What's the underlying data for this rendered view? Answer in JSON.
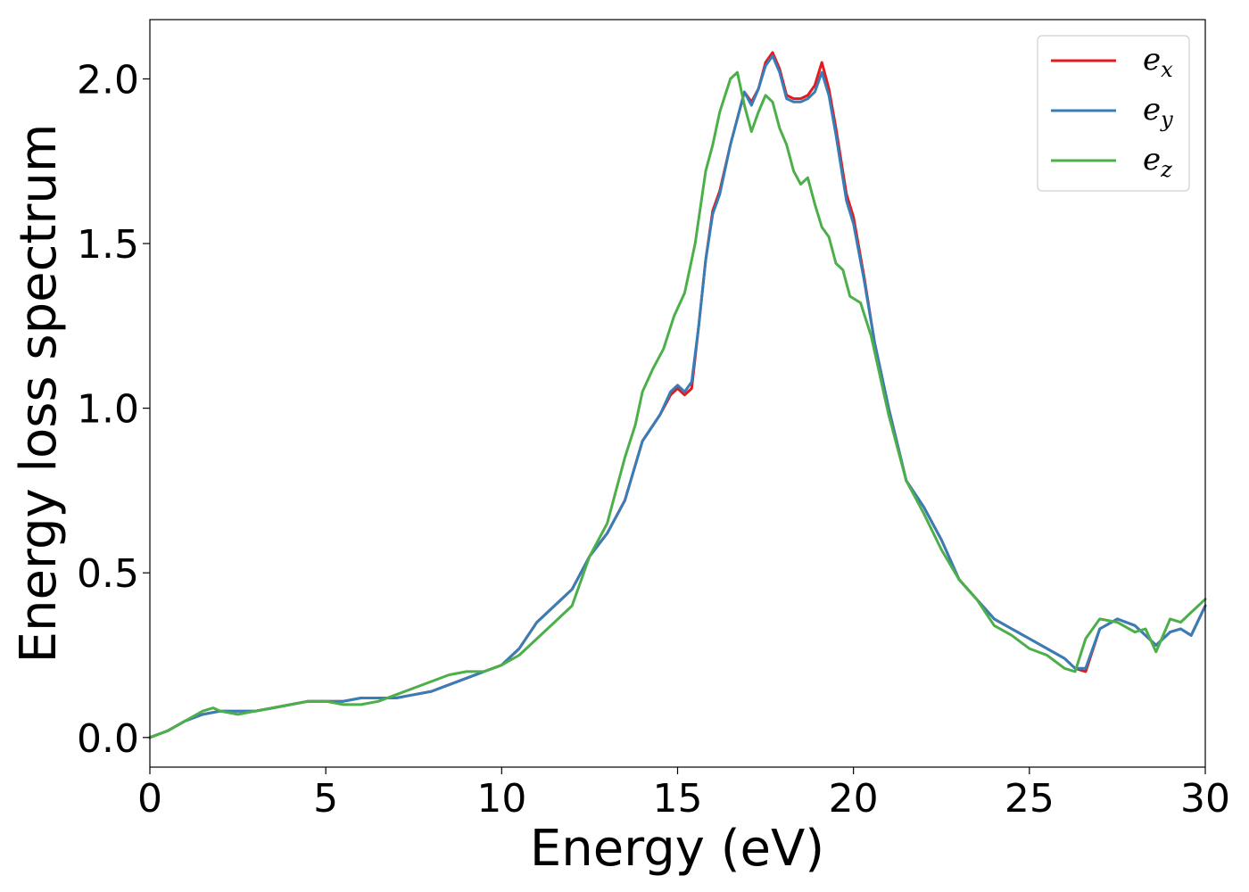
{
  "chart_data": {
    "type": "line",
    "xlabel": "Energy (eV)",
    "ylabel": "Energy loss spectrum",
    "xlim": [
      0,
      30
    ],
    "ylim": [
      -0.09,
      2.18
    ],
    "xticks": [
      0,
      5,
      10,
      15,
      20,
      25,
      30
    ],
    "xtick_labels": [
      "0",
      "5",
      "10",
      "15",
      "20",
      "25",
      "30"
    ],
    "yticks": [
      0.0,
      0.5,
      1.0,
      1.5,
      2.0
    ],
    "ytick_labels": [
      "0.0",
      "0.5",
      "1.0",
      "1.5",
      "2.0"
    ],
    "grid": false,
    "legend_position": "top-right",
    "series": [
      {
        "name": "e_x",
        "label_main": "e",
        "label_sub": "x",
        "color": "#e41a1c",
        "x": [
          0,
          0.5,
          1,
          1.5,
          2,
          2.5,
          3,
          3.5,
          4,
          4.5,
          5,
          5.5,
          6,
          6.5,
          7,
          7.5,
          8,
          8.5,
          9,
          9.5,
          10,
          10.5,
          11,
          11.5,
          12,
          12.5,
          13,
          13.5,
          14,
          14.5,
          14.8,
          15,
          15.2,
          15.4,
          15.6,
          15.8,
          16,
          16.2,
          16.5,
          16.9,
          17.1,
          17.3,
          17.5,
          17.7,
          17.9,
          18.1,
          18.3,
          18.5,
          18.7,
          18.9,
          19.1,
          19.3,
          19.5,
          19.8,
          20,
          20.3,
          20.6,
          21,
          21.5,
          22,
          22.5,
          23,
          23.5,
          24,
          24.5,
          25,
          25.5,
          26,
          26.3,
          26.6,
          27,
          27.5,
          28,
          28.3,
          28.6,
          29,
          29.3,
          29.6,
          30
        ],
        "y": [
          0,
          0.02,
          0.05,
          0.07,
          0.08,
          0.08,
          0.08,
          0.09,
          0.1,
          0.11,
          0.11,
          0.11,
          0.12,
          0.12,
          0.12,
          0.13,
          0.14,
          0.16,
          0.18,
          0.2,
          0.22,
          0.27,
          0.35,
          0.4,
          0.45,
          0.55,
          0.62,
          0.72,
          0.9,
          0.98,
          1.04,
          1.06,
          1.04,
          1.06,
          1.25,
          1.45,
          1.6,
          1.66,
          1.8,
          1.96,
          1.93,
          1.97,
          2.05,
          2.08,
          2.03,
          1.95,
          1.94,
          1.94,
          1.95,
          1.98,
          2.05,
          1.97,
          1.85,
          1.65,
          1.58,
          1.4,
          1.2,
          1.0,
          0.78,
          0.7,
          0.6,
          0.48,
          0.42,
          0.36,
          0.33,
          0.3,
          0.27,
          0.24,
          0.21,
          0.2,
          0.33,
          0.36,
          0.34,
          0.31,
          0.28,
          0.32,
          0.33,
          0.31,
          0.4
        ]
      },
      {
        "name": "e_y",
        "label_main": "e",
        "label_sub": "y",
        "color": "#377eb8",
        "x": [
          0,
          0.5,
          1,
          1.5,
          2,
          2.5,
          3,
          3.5,
          4,
          4.5,
          5,
          5.5,
          6,
          6.5,
          7,
          7.5,
          8,
          8.5,
          9,
          9.5,
          10,
          10.5,
          11,
          11.5,
          12,
          12.5,
          13,
          13.5,
          14,
          14.5,
          14.8,
          15,
          15.2,
          15.4,
          15.6,
          15.8,
          16,
          16.2,
          16.5,
          16.9,
          17.1,
          17.3,
          17.5,
          17.7,
          17.9,
          18.1,
          18.3,
          18.5,
          18.7,
          18.9,
          19.1,
          19.3,
          19.5,
          19.8,
          20,
          20.3,
          20.6,
          21,
          21.5,
          22,
          22.5,
          23,
          23.5,
          24,
          24.5,
          25,
          25.5,
          26,
          26.3,
          26.6,
          27,
          27.5,
          28,
          28.3,
          28.6,
          29,
          29.3,
          29.6,
          30
        ],
        "y": [
          0,
          0.02,
          0.05,
          0.07,
          0.08,
          0.08,
          0.08,
          0.09,
          0.1,
          0.11,
          0.11,
          0.11,
          0.12,
          0.12,
          0.12,
          0.13,
          0.14,
          0.16,
          0.18,
          0.2,
          0.22,
          0.27,
          0.35,
          0.4,
          0.45,
          0.55,
          0.62,
          0.72,
          0.9,
          0.98,
          1.05,
          1.07,
          1.05,
          1.08,
          1.25,
          1.45,
          1.59,
          1.65,
          1.8,
          1.96,
          1.92,
          1.97,
          2.04,
          2.07,
          2.02,
          1.94,
          1.93,
          1.93,
          1.94,
          1.96,
          2.02,
          1.95,
          1.83,
          1.63,
          1.56,
          1.39,
          1.2,
          1.0,
          0.78,
          0.7,
          0.6,
          0.48,
          0.42,
          0.36,
          0.33,
          0.3,
          0.27,
          0.24,
          0.21,
          0.21,
          0.33,
          0.36,
          0.34,
          0.31,
          0.28,
          0.32,
          0.33,
          0.31,
          0.4
        ]
      },
      {
        "name": "e_z",
        "label_main": "e",
        "label_sub": "z",
        "color": "#4daf4a",
        "x": [
          0,
          0.5,
          1,
          1.5,
          1.8,
          2,
          2.5,
          3,
          3.5,
          4,
          4.5,
          5,
          5.5,
          6,
          6.5,
          7,
          7.5,
          8,
          8.5,
          9,
          9.5,
          10,
          10.5,
          11,
          11.5,
          12,
          12.5,
          13,
          13.5,
          13.8,
          14,
          14.3,
          14.6,
          14.9,
          15.2,
          15.5,
          15.8,
          16,
          16.2,
          16.5,
          16.7,
          16.9,
          17.1,
          17.3,
          17.5,
          17.7,
          17.9,
          18.1,
          18.3,
          18.5,
          18.7,
          18.9,
          19.1,
          19.3,
          19.5,
          19.7,
          19.9,
          20.2,
          20.5,
          21,
          21.5,
          22,
          22.5,
          23,
          23.5,
          24,
          24.5,
          25,
          25.5,
          26,
          26.3,
          26.6,
          27,
          27.5,
          28,
          28.3,
          28.6,
          29,
          29.3,
          29.6,
          30
        ],
        "y": [
          0,
          0.02,
          0.05,
          0.08,
          0.09,
          0.08,
          0.07,
          0.08,
          0.09,
          0.1,
          0.11,
          0.11,
          0.1,
          0.1,
          0.11,
          0.13,
          0.15,
          0.17,
          0.19,
          0.2,
          0.2,
          0.22,
          0.25,
          0.3,
          0.35,
          0.4,
          0.55,
          0.65,
          0.85,
          0.95,
          1.05,
          1.12,
          1.18,
          1.28,
          1.35,
          1.5,
          1.72,
          1.8,
          1.9,
          2.0,
          2.02,
          1.92,
          1.84,
          1.9,
          1.95,
          1.93,
          1.85,
          1.8,
          1.72,
          1.68,
          1.7,
          1.62,
          1.55,
          1.52,
          1.44,
          1.42,
          1.34,
          1.32,
          1.22,
          0.98,
          0.78,
          0.68,
          0.57,
          0.48,
          0.42,
          0.34,
          0.31,
          0.27,
          0.25,
          0.21,
          0.2,
          0.3,
          0.36,
          0.35,
          0.32,
          0.33,
          0.26,
          0.36,
          0.35,
          0.38,
          0.42
        ]
      }
    ]
  }
}
